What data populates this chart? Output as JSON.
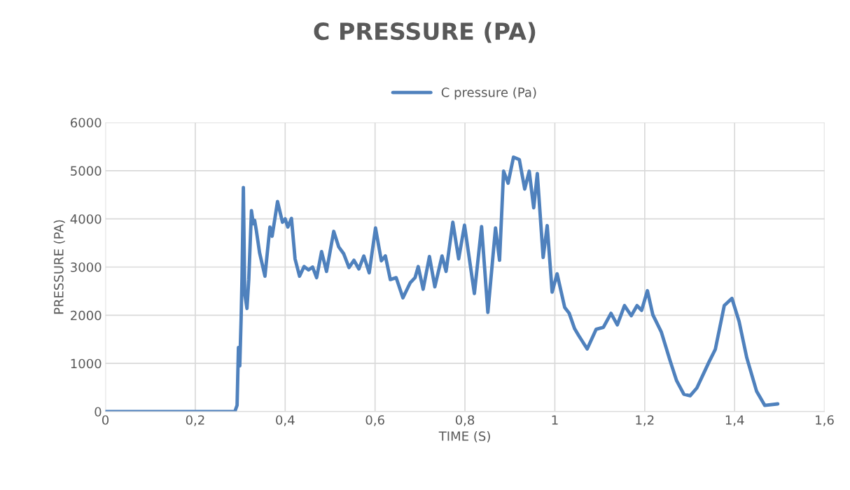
{
  "chart_data": {
    "type": "line",
    "title": "C PRESSURE (PA)",
    "xlabel": "TIME (S)",
    "ylabel": "PRESSURE (PA)",
    "xlim": [
      0,
      1.6
    ],
    "ylim": [
      0,
      6000
    ],
    "xticks": [
      0,
      {
        "value": 0.2,
        "label": "0,2"
      },
      {
        "value": 0.4,
        "label": "0,4"
      },
      {
        "value": 0.6,
        "label": "0,6"
      },
      {
        "value": 0.8,
        "label": "0,8"
      },
      1,
      {
        "value": 1.2,
        "label": "1,2"
      },
      {
        "value": 1.4,
        "label": "1,4"
      },
      {
        "value": 1.6,
        "label": "1,6"
      }
    ],
    "yticks": [
      0,
      1000,
      2000,
      3000,
      4000,
      5000,
      6000
    ],
    "grid": true,
    "legend": "top",
    "line_style": "solid",
    "marker": "none",
    "series": [
      {
        "name": "C pressure (Pa)",
        "color": "#4f81bd",
        "x": [
          0,
          0.288,
          0.293,
          0.296,
          0.299,
          0.302,
          0.304,
          0.307,
          0.31,
          0.315,
          0.319,
          0.325,
          0.329,
          0.332,
          0.336,
          0.343,
          0.355,
          0.366,
          0.371,
          0.383,
          0.394,
          0.4,
          0.406,
          0.414,
          0.422,
          0.432,
          0.442,
          0.452,
          0.461,
          0.47,
          0.481,
          0.492,
          0.508,
          0.519,
          0.53,
          0.542,
          0.553,
          0.564,
          0.575,
          0.587,
          0.601,
          0.614,
          0.623,
          0.634,
          0.647,
          0.662,
          0.678,
          0.689,
          0.696,
          0.707,
          0.721,
          0.733,
          0.749,
          0.758,
          0.773,
          0.786,
          0.799,
          0.821,
          0.837,
          0.851,
          0.868,
          0.877,
          0.886,
          0.896,
          0.908,
          0.921,
          0.933,
          0.943,
          0.953,
          0.961,
          0.974,
          0.983,
          0.994,
          1.005,
          1.022,
          1.032,
          1.044,
          1.053,
          1.072,
          1.092,
          1.108,
          1.125,
          1.139,
          1.155,
          1.17,
          1.183,
          1.193,
          1.206,
          1.218,
          1.237,
          1.256,
          1.271,
          1.287,
          1.301,
          1.316,
          1.343,
          1.357,
          1.377,
          1.394,
          1.41,
          1.427,
          1.449,
          1.467,
          1.496
        ],
        "values": [
          0,
          0,
          130,
          1330,
          950,
          1940,
          2810,
          4650,
          2450,
          2140,
          2740,
          4170,
          3900,
          3970,
          3750,
          3300,
          2810,
          3830,
          3640,
          4360,
          3930,
          4000,
          3830,
          4010,
          3170,
          2810,
          3010,
          2940,
          3000,
          2780,
          3320,
          2910,
          3740,
          3420,
          3280,
          2990,
          3140,
          2960,
          3230,
          2880,
          3810,
          3130,
          3230,
          2740,
          2780,
          2360,
          2670,
          2780,
          3010,
          2540,
          3220,
          2590,
          3230,
          2910,
          3930,
          3170,
          3870,
          2450,
          3840,
          2060,
          3810,
          3140,
          4990,
          4740,
          5280,
          5230,
          4620,
          4990,
          4230,
          4940,
          3200,
          3860,
          2480,
          2860,
          2160,
          2040,
          1720,
          1580,
          1300,
          1710,
          1750,
          2040,
          1800,
          2200,
          1990,
          2200,
          2100,
          2510,
          2010,
          1650,
          1070,
          640,
          360,
          330,
          490,
          1030,
          1290,
          2200,
          2350,
          1870,
          1120,
          420,
          130,
          160
        ]
      }
    ]
  }
}
